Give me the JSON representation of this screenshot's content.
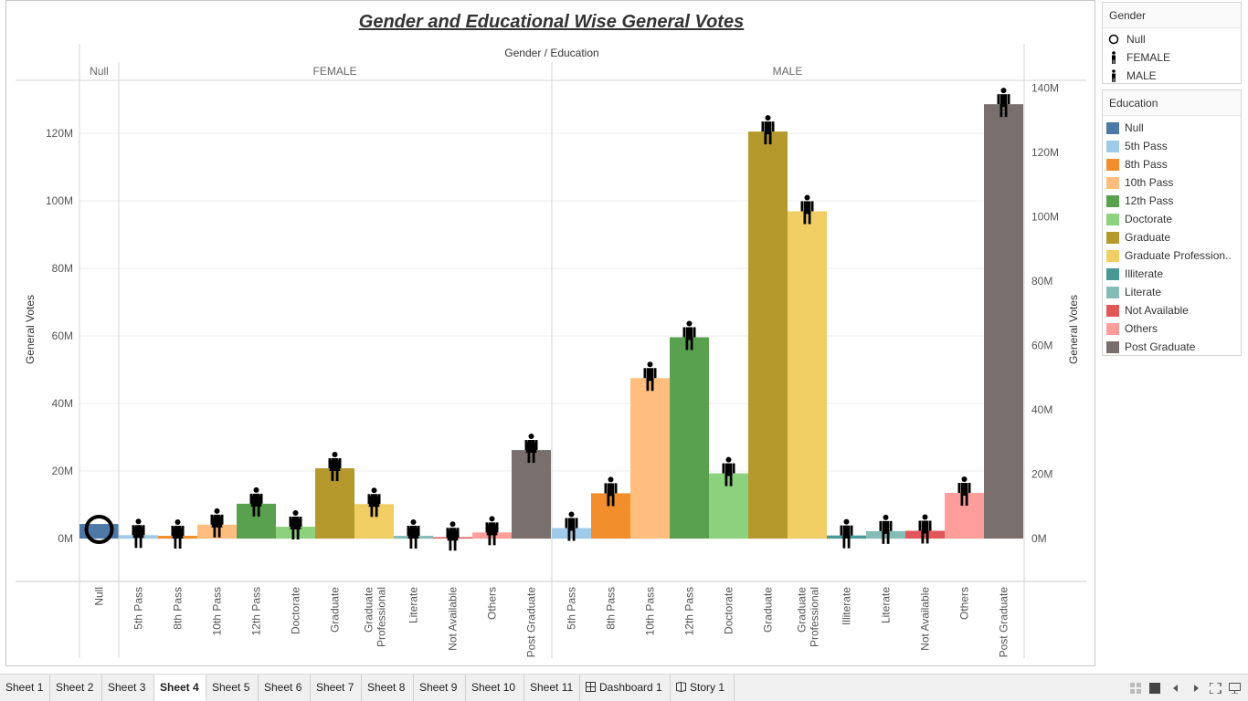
{
  "title": "Gender and Educational Wise General Votes",
  "header": "Gender / Education",
  "chart_data": {
    "type": "bar",
    "title": "Gender and Educational Wise General Votes",
    "column_header": "Gender / Education",
    "ylabel_left": "General Votes",
    "ylabel_right": "General Votes",
    "left_ticks": [
      "0M",
      "20M",
      "40M",
      "60M",
      "80M",
      "100M",
      "120M"
    ],
    "right_ticks": [
      "0M",
      "20M",
      "40M",
      "60M",
      "80M",
      "100M",
      "120M",
      "140M"
    ],
    "ylim": [
      -12,
      135
    ],
    "unit": "M",
    "groups": [
      {
        "gender": "Null",
        "shape": "circle",
        "bars": [
          {
            "education": "Null",
            "value": 4.3
          }
        ]
      },
      {
        "gender": "FEMALE",
        "shape": "female",
        "bars": [
          {
            "education": "5th Pass",
            "value": 1.0
          },
          {
            "education": "8th Pass",
            "value": 0.8
          },
          {
            "education": "10th Pass",
            "value": 4.1
          },
          {
            "education": "12th Pass",
            "value": 10.3
          },
          {
            "education": "Doctorate",
            "value": 3.5
          },
          {
            "education": "Graduate",
            "value": 20.8
          },
          {
            "education": "Graduate Professional",
            "value": 10.2
          },
          {
            "education": "Literate",
            "value": 0.8
          },
          {
            "education": "Not Available",
            "value": 0.2
          },
          {
            "education": "Others",
            "value": 1.8
          },
          {
            "education": "Post Graduate",
            "value": 26.2
          }
        ]
      },
      {
        "gender": "MALE",
        "shape": "male",
        "bars": [
          {
            "education": "5th Pass",
            "value": 3.1
          },
          {
            "education": "8th Pass",
            "value": 13.4
          },
          {
            "education": "10th Pass",
            "value": 47.5
          },
          {
            "education": "12th Pass",
            "value": 59.6
          },
          {
            "education": "Doctorate",
            "value": 19.3
          },
          {
            "education": "Graduate",
            "value": 120.5
          },
          {
            "education": "Graduate Professional",
            "value": 96.9
          },
          {
            "education": "Illiterate",
            "value": 0.9
          },
          {
            "education": "Literate",
            "value": 2.2
          },
          {
            "education": "Not Available",
            "value": 2.3
          },
          {
            "education": "Others",
            "value": 13.5
          },
          {
            "education": "Post Graduate",
            "value": 128.6
          }
        ]
      }
    ],
    "colors": {
      "Null": "#4e79a7",
      "5th Pass": "#a0cbe8",
      "8th Pass": "#f28e2b",
      "10th Pass": "#ffbe7d",
      "12th Pass": "#59a14f",
      "Doctorate": "#8cd17d",
      "Graduate": "#b6992d",
      "Graduate Professional": "#f1ce63",
      "Illiterate": "#499894",
      "Literate": "#86bcb6",
      "Not Available": "#e15759",
      "Others": "#ff9d9a",
      "Post Graduate": "#79706e"
    },
    "grid": true
  },
  "legend_gender": {
    "title": "Gender",
    "items": [
      {
        "label": "Null",
        "shape": "circle"
      },
      {
        "label": "FEMALE",
        "shape": "female"
      },
      {
        "label": "MALE",
        "shape": "male"
      }
    ]
  },
  "legend_education": {
    "title": "Education",
    "items": [
      {
        "label": "Null",
        "color": "#4e79a7"
      },
      {
        "label": "5th Pass",
        "color": "#a0cbe8"
      },
      {
        "label": "8th Pass",
        "color": "#f28e2b"
      },
      {
        "label": "10th Pass",
        "color": "#ffbe7d"
      },
      {
        "label": "12th Pass",
        "color": "#59a14f"
      },
      {
        "label": "Doctorate",
        "color": "#8cd17d"
      },
      {
        "label": "Graduate",
        "color": "#b6992d"
      },
      {
        "label": "Graduate Profession..",
        "color": "#f1ce63"
      },
      {
        "label": "Illiterate",
        "color": "#499894"
      },
      {
        "label": "Literate",
        "color": "#86bcb6"
      },
      {
        "label": "Not Available",
        "color": "#e15759"
      },
      {
        "label": "Others",
        "color": "#ff9d9a"
      },
      {
        "label": "Post Graduate",
        "color": "#79706e"
      }
    ]
  },
  "tabs": [
    {
      "label": "Sheet 1",
      "active": false,
      "icon": ""
    },
    {
      "label": "Sheet 2",
      "active": false,
      "icon": ""
    },
    {
      "label": "Sheet 3",
      "active": false,
      "icon": ""
    },
    {
      "label": "Sheet 4",
      "active": true,
      "icon": ""
    },
    {
      "label": "Sheet 5",
      "active": false,
      "icon": ""
    },
    {
      "label": "Sheet 6",
      "active": false,
      "icon": ""
    },
    {
      "label": "Sheet 7",
      "active": false,
      "icon": ""
    },
    {
      "label": "Sheet 8",
      "active": false,
      "icon": ""
    },
    {
      "label": "Sheet 9",
      "active": false,
      "icon": ""
    },
    {
      "label": "Sheet 10",
      "active": false,
      "icon": ""
    },
    {
      "label": "Sheet 11",
      "active": false,
      "icon": ""
    },
    {
      "label": "Dashboard 1",
      "active": false,
      "icon": "dashboard-icon"
    },
    {
      "label": "Story 1",
      "active": false,
      "icon": "story-icon"
    }
  ],
  "controls": [
    "grid-view-icon",
    "filmstrip-icon",
    "prev-sheet-icon",
    "next-sheet-icon",
    "fit-icon",
    "presentation-icon"
  ]
}
